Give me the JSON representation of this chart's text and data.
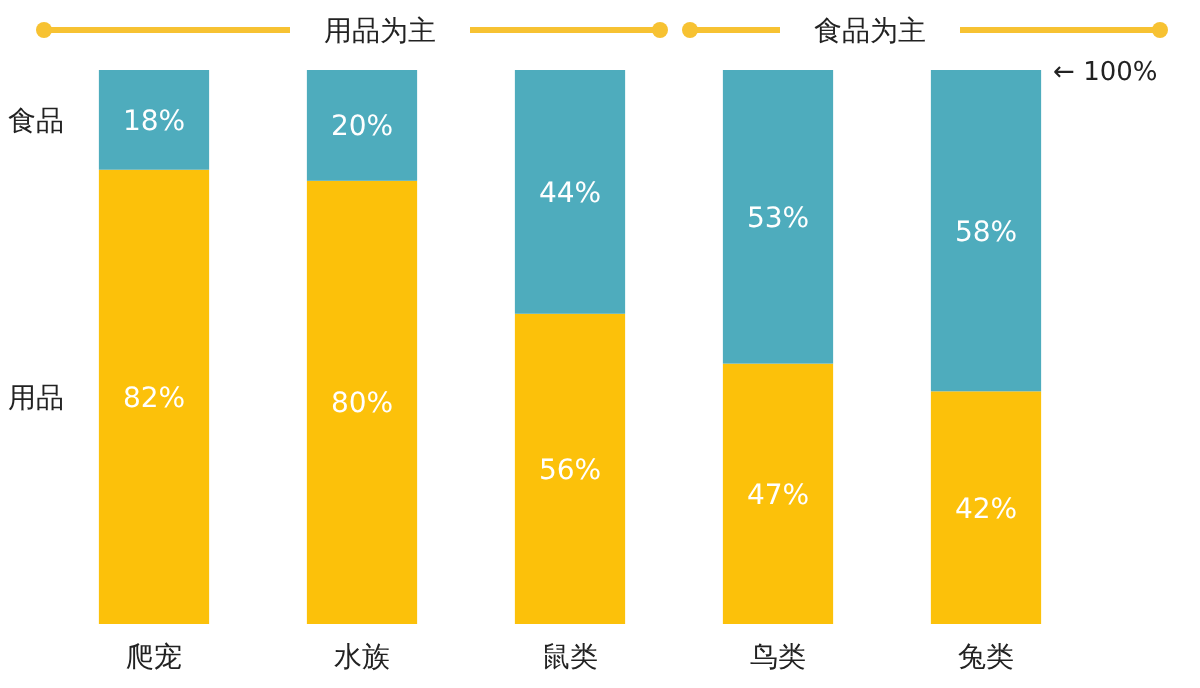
{
  "chart_data": {
    "type": "bar",
    "stacked": true,
    "legend": false,
    "categories": [
      "爬宠",
      "水族",
      "鼠类",
      "鸟类",
      "兔类"
    ],
    "series": [
      {
        "name": "用品",
        "color": "#fcc10a",
        "values": [
          82,
          80,
          56,
          47,
          42
        ],
        "value_labels": [
          "82%",
          "80%",
          "56%",
          "47%",
          "42%"
        ]
      },
      {
        "name": "食品",
        "color": "#4eacbd",
        "values": [
          18,
          20,
          44,
          53,
          58
        ],
        "value_labels": [
          "18%",
          "20%",
          "44%",
          "53%",
          "58%"
        ]
      }
    ],
    "annotations": [
      "用品为主",
      "食品为主",
      {
        "text": "← 100%",
        "x": "兔类",
        "y": 100
      }
    ]
  }
}
